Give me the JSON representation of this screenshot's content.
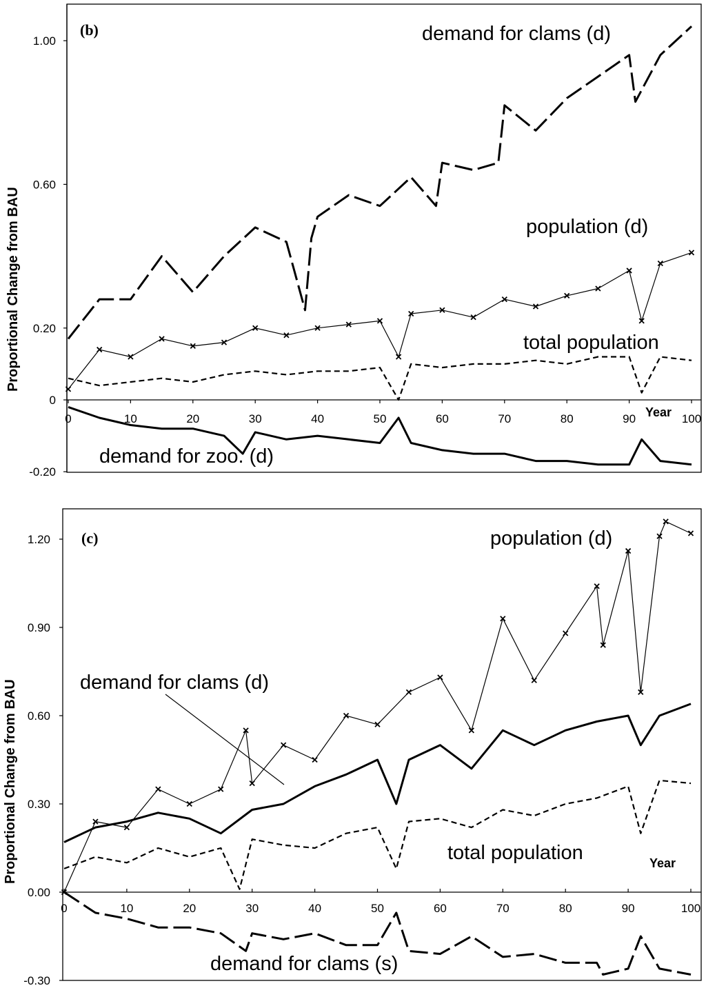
{
  "y_axis_label": "Proportional Change from BAU",
  "chart_data": [
    {
      "type": "line",
      "panel_label": "(b)",
      "xlabel": "Year",
      "ylabel": "Proportional Change from BAU",
      "xlim": [
        0,
        100
      ],
      "ylim": [
        -0.2,
        1.2
      ],
      "x_ticks": [
        "0",
        "10",
        "20",
        "30",
        "40",
        "50",
        "60",
        "70",
        "80",
        "90",
        "100"
      ],
      "y_ticks": [
        {
          "value": 1.0,
          "label": "1.00"
        },
        {
          "value": 0.6,
          "label": "0.60"
        },
        {
          "value": 0.2,
          "label": "0.20"
        },
        {
          "value": 0.0,
          "label": "0"
        },
        {
          "value": -0.2,
          "label": "-0.20"
        }
      ],
      "annotations": [
        "demand for clams (d)",
        "population (d)",
        "total population",
        "demand for zoo. (d)"
      ],
      "series": [
        {
          "name": "demand for clams (d)",
          "style": "long-dash",
          "x": [
            0,
            5,
            10,
            15,
            20,
            25,
            30,
            35,
            38,
            39,
            40,
            45,
            50,
            55,
            59,
            60,
            65,
            69,
            70,
            75,
            80,
            85,
            90,
            91,
            95,
            100
          ],
          "y": [
            0.17,
            0.28,
            0.28,
            0.4,
            0.3,
            0.4,
            0.48,
            0.44,
            0.25,
            0.45,
            0.51,
            0.57,
            0.54,
            0.62,
            0.54,
            0.66,
            0.64,
            0.66,
            0.82,
            0.75,
            0.84,
            0.9,
            0.96,
            0.83,
            0.96,
            1.04
          ]
        },
        {
          "name": "population (d)",
          "style": "solid-x-markers",
          "x": [
            0,
            5,
            10,
            15,
            20,
            25,
            30,
            35,
            40,
            45,
            50,
            53,
            55,
            60,
            65,
            70,
            75,
            80,
            85,
            90,
            92,
            95,
            100
          ],
          "y": [
            0.03,
            0.14,
            0.12,
            0.17,
            0.15,
            0.16,
            0.2,
            0.18,
            0.2,
            0.21,
            0.22,
            0.12,
            0.24,
            0.25,
            0.23,
            0.28,
            0.26,
            0.29,
            0.31,
            0.36,
            0.22,
            0.38,
            0.41
          ]
        },
        {
          "name": "total population",
          "style": "short-dash",
          "x": [
            0,
            5,
            10,
            15,
            20,
            25,
            30,
            35,
            40,
            45,
            50,
            53,
            55,
            60,
            65,
            70,
            75,
            80,
            85,
            90,
            92,
            95,
            100
          ],
          "y": [
            0.06,
            0.04,
            0.05,
            0.06,
            0.05,
            0.07,
            0.08,
            0.07,
            0.08,
            0.08,
            0.09,
            0.0,
            0.1,
            0.09,
            0.1,
            0.1,
            0.11,
            0.1,
            0.12,
            0.12,
            0.02,
            0.12,
            0.11
          ]
        },
        {
          "name": "demand for zoo. (d)",
          "style": "solid-thick",
          "x": [
            0,
            5,
            10,
            15,
            20,
            25,
            28,
            30,
            35,
            40,
            45,
            50,
            53,
            55,
            60,
            65,
            70,
            75,
            80,
            85,
            90,
            92,
            95,
            100
          ],
          "y": [
            -0.02,
            -0.05,
            -0.07,
            -0.08,
            -0.08,
            -0.1,
            -0.15,
            -0.09,
            -0.11,
            -0.1,
            -0.11,
            -0.12,
            -0.05,
            -0.12,
            -0.14,
            -0.15,
            -0.15,
            -0.17,
            -0.17,
            -0.18,
            -0.18,
            -0.11,
            -0.17,
            -0.18
          ]
        }
      ]
    },
    {
      "type": "line",
      "panel_label": "(c)",
      "xlabel": "Year",
      "ylabel": "Proportional Change from BAU",
      "xlim": [
        0,
        100
      ],
      "ylim": [
        -0.3,
        1.3
      ],
      "x_ticks": [
        "0",
        "10",
        "20",
        "30",
        "40",
        "50",
        "60",
        "70",
        "80",
        "90",
        "100"
      ],
      "y_ticks": [
        {
          "value": 1.2,
          "label": "1.20"
        },
        {
          "value": 0.9,
          "label": "0.90"
        },
        {
          "value": 0.6,
          "label": "0.60"
        },
        {
          "value": 0.3,
          "label": "0.30"
        },
        {
          "value": 0.0,
          "label": "0.00"
        },
        {
          "value": -0.3,
          "label": "-0.30"
        }
      ],
      "annotations": [
        "population (d)",
        "demand for clams (d)",
        "total population",
        "demand for clams (s)"
      ],
      "series": [
        {
          "name": "population (d)",
          "style": "solid-x-markers",
          "x": [
            0,
            5,
            10,
            15,
            20,
            25,
            29,
            30,
            35,
            40,
            45,
            50,
            55,
            60,
            65,
            70,
            75,
            80,
            85,
            86,
            90,
            92,
            95,
            96,
            100
          ],
          "y": [
            0.0,
            0.24,
            0.22,
            0.35,
            0.3,
            0.35,
            0.55,
            0.37,
            0.5,
            0.45,
            0.6,
            0.57,
            0.68,
            0.73,
            0.55,
            0.93,
            0.72,
            0.88,
            1.04,
            0.84,
            1.16,
            0.68,
            1.21,
            1.26,
            1.22
          ]
        },
        {
          "name": "demand for clams (d)",
          "style": "solid-thick",
          "x": [
            0,
            5,
            10,
            15,
            20,
            25,
            30,
            35,
            40,
            45,
            50,
            53,
            55,
            60,
            65,
            70,
            75,
            80,
            85,
            90,
            92,
            95,
            100
          ],
          "y": [
            0.17,
            0.22,
            0.24,
            0.27,
            0.25,
            0.2,
            0.28,
            0.3,
            0.36,
            0.4,
            0.45,
            0.3,
            0.45,
            0.5,
            0.42,
            0.55,
            0.5,
            0.55,
            0.58,
            0.6,
            0.5,
            0.6,
            0.64
          ]
        },
        {
          "name": "total population",
          "style": "short-dash",
          "x": [
            0,
            5,
            10,
            15,
            20,
            25,
            28,
            30,
            35,
            40,
            45,
            50,
            53,
            55,
            60,
            65,
            70,
            75,
            80,
            85,
            90,
            92,
            95,
            100
          ],
          "y": [
            0.08,
            0.12,
            0.1,
            0.15,
            0.12,
            0.15,
            0.01,
            0.18,
            0.16,
            0.15,
            0.2,
            0.22,
            0.08,
            0.24,
            0.25,
            0.22,
            0.28,
            0.26,
            0.3,
            0.32,
            0.36,
            0.2,
            0.38,
            0.37
          ]
        },
        {
          "name": "demand for clams (s)",
          "style": "long-dash",
          "x": [
            0,
            5,
            10,
            15,
            20,
            25,
            29,
            30,
            35,
            40,
            45,
            50,
            53,
            55,
            60,
            65,
            70,
            75,
            80,
            85,
            86,
            90,
            92,
            95,
            100
          ],
          "y": [
            0.0,
            -0.07,
            -0.09,
            -0.12,
            -0.12,
            -0.14,
            -0.2,
            -0.14,
            -0.16,
            -0.14,
            -0.18,
            -0.18,
            -0.07,
            -0.2,
            -0.21,
            -0.15,
            -0.22,
            -0.21,
            -0.24,
            -0.24,
            -0.28,
            -0.26,
            -0.15,
            -0.26,
            -0.28
          ]
        }
      ]
    }
  ]
}
